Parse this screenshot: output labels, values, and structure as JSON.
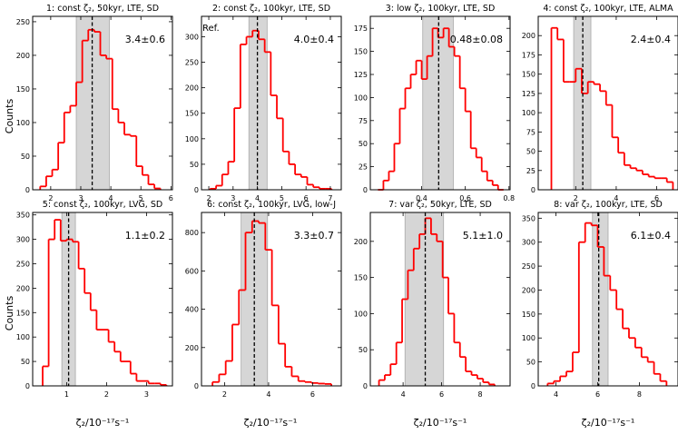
{
  "figure": {
    "ylabel": "Counts",
    "xlabel": "ζ₂/10⁻¹⁷s⁻¹"
  },
  "chart_data": [
    {
      "type": "histogram",
      "title": "1: const ζ₂, 50kyr, LTE, SD",
      "annotation": "3.4±0.6",
      "xlim": [
        1.4,
        6.05
      ],
      "ylim": [
        0,
        258
      ],
      "xticks": [
        2,
        3,
        4,
        5,
        6
      ],
      "yticks": [
        0,
        50,
        100,
        150,
        200,
        250
      ],
      "band": [
        2.85,
        3.95
      ],
      "median": 3.38,
      "edges": [
        1.65,
        1.85,
        2.05,
        2.25,
        2.45,
        2.65,
        2.85,
        3.05,
        3.25,
        3.45,
        3.65,
        3.85,
        4.05,
        4.25,
        4.45,
        4.65,
        4.85,
        5.05,
        5.25,
        5.45,
        5.65
      ],
      "counts": [
        5,
        20,
        30,
        70,
        115,
        125,
        160,
        222,
        238,
        235,
        200,
        195,
        120,
        100,
        82,
        80,
        35,
        22,
        8,
        2
      ]
    },
    {
      "type": "histogram",
      "title": "2: const ζ₂, 100kyr, LTE, SD",
      "annotation": "4.0±0.4",
      "label": "Ref.",
      "xlim": [
        1.7,
        7.45
      ],
      "ylim": [
        0,
        340
      ],
      "xticks": [
        2,
        3,
        4,
        5,
        6,
        7
      ],
      "yticks": [
        0,
        50,
        100,
        150,
        200,
        250,
        300
      ],
      "band": [
        3.65,
        4.4
      ],
      "median": 4.0,
      "edges": [
        2.05,
        2.3,
        2.55,
        2.8,
        3.05,
        3.3,
        3.55,
        3.8,
        4.05,
        4.3,
        4.55,
        4.8,
        5.05,
        5.3,
        5.55,
        5.8,
        6.05,
        6.3,
        6.55,
        6.8,
        7.05
      ],
      "counts": [
        2,
        8,
        30,
        55,
        160,
        285,
        300,
        312,
        295,
        270,
        185,
        140,
        75,
        50,
        30,
        25,
        10,
        5,
        2,
        2
      ]
    },
    {
      "type": "histogram",
      "title": "3: low ζ₂, 100kyr, LTE, SD",
      "annotation": "0.48±0.08",
      "xlim": [
        0.165,
        0.805
      ],
      "ylim": [
        0,
        188
      ],
      "xticks": [
        0.4,
        0.6,
        0.8
      ],
      "yticks": [
        0,
        25,
        50,
        75,
        100,
        125,
        150,
        175
      ],
      "band": [
        0.405,
        0.545
      ],
      "median": 0.478,
      "edges": [
        0.2,
        0.225,
        0.25,
        0.275,
        0.3,
        0.325,
        0.35,
        0.375,
        0.4,
        0.425,
        0.45,
        0.475,
        0.5,
        0.525,
        0.55,
        0.575,
        0.6,
        0.625,
        0.65,
        0.675,
        0.7,
        0.725,
        0.75,
        0.775
      ],
      "counts": [
        0,
        10,
        20,
        50,
        88,
        110,
        125,
        140,
        120,
        145,
        175,
        165,
        175,
        155,
        145,
        110,
        85,
        45,
        35,
        20,
        10,
        5,
        0
      ]
    },
    {
      "type": "histogram",
      "title": "4: const ζ₂, 100kyr, LTE, ALMA",
      "annotation": "2.4±0.4",
      "xlim": [
        0.15,
        7.05
      ],
      "ylim": [
        0,
        225
      ],
      "xticks": [
        2,
        4,
        6
      ],
      "yticks": [
        0,
        25,
        50,
        75,
        100,
        125,
        150,
        175,
        200
      ],
      "band": [
        1.9,
        2.75
      ],
      "median": 2.35,
      "edges": [
        0.8,
        1.1,
        1.4,
        1.7,
        2.0,
        2.3,
        2.6,
        2.9,
        3.2,
        3.5,
        3.8,
        4.1,
        4.4,
        4.7,
        5.0,
        5.3,
        5.6,
        5.9,
        6.2,
        6.5,
        6.8
      ],
      "counts": [
        210,
        195,
        140,
        140,
        157,
        125,
        140,
        137,
        128,
        110,
        68,
        48,
        32,
        28,
        25,
        20,
        17,
        15,
        15,
        10
      ]
    },
    {
      "type": "histogram",
      "title": "5: const ζ₂, 100kyr, LVG, SD",
      "annotation": "1.1±0.2",
      "xlim": [
        0.15,
        3.65
      ],
      "ylim": [
        0,
        355
      ],
      "xticks": [
        1,
        2,
        3
      ],
      "yticks": [
        0,
        50,
        100,
        150,
        200,
        250,
        300,
        350
      ],
      "band": [
        0.88,
        1.22
      ],
      "median": 1.05,
      "edges": [
        0.4,
        0.55,
        0.7,
        0.85,
        1.0,
        1.15,
        1.3,
        1.45,
        1.6,
        1.75,
        1.9,
        2.05,
        2.2,
        2.35,
        2.6,
        2.75,
        2.9,
        3.05,
        3.2,
        3.35,
        3.5
      ],
      "counts": [
        40,
        300,
        340,
        297,
        300,
        295,
        240,
        190,
        155,
        115,
        115,
        90,
        70,
        50,
        25,
        10,
        10,
        5,
        5,
        2
      ]
    },
    {
      "type": "histogram",
      "title": "6: const ζ₂, 100kyr, LVG, low-J",
      "annotation": "3.3±0.7",
      "xlim": [
        0.95,
        7.3
      ],
      "ylim": [
        0,
        905
      ],
      "xticks": [
        2,
        4,
        6
      ],
      "yticks": [
        0,
        200,
        400,
        600,
        800
      ],
      "band": [
        2.75,
        3.95
      ],
      "median": 3.35,
      "edges": [
        1.45,
        1.75,
        2.05,
        2.35,
        2.65,
        2.95,
        3.25,
        3.55,
        3.85,
        4.15,
        4.45,
        4.75,
        5.05,
        5.35,
        5.65,
        5.95,
        6.25,
        6.55,
        6.85
      ],
      "counts": [
        20,
        60,
        130,
        320,
        500,
        800,
        860,
        850,
        710,
        420,
        220,
        100,
        50,
        25,
        20,
        15,
        12,
        10
      ]
    },
    {
      "type": "histogram",
      "title": "7: var ζ₂, 50kyr, LTE, SD",
      "annotation": "5.1±1.0",
      "xlim": [
        2.3,
        9.55
      ],
      "ylim": [
        0,
        240
      ],
      "xticks": [
        4,
        6,
        8
      ],
      "yticks": [
        0,
        50,
        100,
        150,
        200
      ],
      "band": [
        4.1,
        6.1
      ],
      "median": 5.15,
      "edges": [
        2.75,
        3.05,
        3.35,
        3.65,
        3.95,
        4.25,
        4.55,
        4.85,
        5.15,
        5.45,
        5.75,
        6.05,
        6.35,
        6.65,
        6.95,
        7.25,
        7.55,
        7.85,
        8.15,
        8.45,
        8.75
      ],
      "counts": [
        8,
        15,
        30,
        60,
        120,
        160,
        190,
        210,
        232,
        210,
        200,
        150,
        100,
        60,
        40,
        20,
        15,
        10,
        5,
        2
      ]
    },
    {
      "type": "histogram",
      "title": "8: var ζ₂, 100kyr, LTE, SD",
      "annotation": "6.1±0.4",
      "xlim": [
        3.15,
        9.85
      ],
      "ylim": [
        0,
        362
      ],
      "xticks": [
        4,
        6,
        8
      ],
      "yticks": [
        0,
        50,
        100,
        150,
        200,
        250,
        300,
        350
      ],
      "band": [
        5.75,
        6.5
      ],
      "median": 6.05,
      "edges": [
        3.6,
        3.9,
        4.2,
        4.5,
        4.8,
        5.1,
        5.4,
        5.7,
        6.0,
        6.3,
        6.6,
        6.9,
        7.2,
        7.5,
        7.8,
        8.1,
        8.4,
        8.7,
        9.0,
        9.3
      ],
      "counts": [
        5,
        10,
        20,
        30,
        70,
        300,
        340,
        335,
        290,
        230,
        200,
        160,
        120,
        100,
        80,
        60,
        50,
        25,
        10
      ]
    }
  ]
}
